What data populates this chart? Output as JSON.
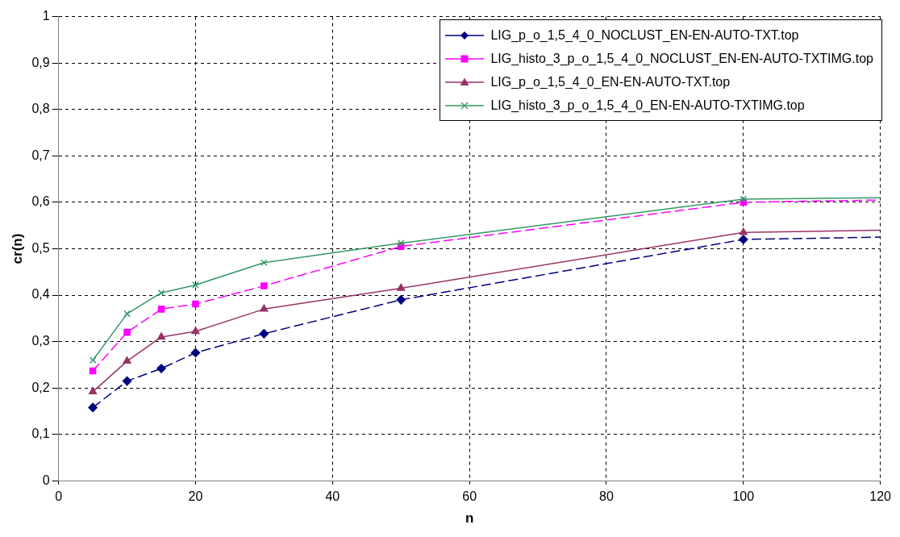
{
  "chart_data": {
    "type": "line",
    "xlabel": "n",
    "ylabel": "cr(n)",
    "xlim": [
      0,
      120
    ],
    "xticks": [
      0,
      20,
      40,
      60,
      80,
      100,
      120
    ],
    "ylim": [
      0,
      1
    ],
    "yticks": [
      0,
      {
        "value": 0.1,
        "label": "0,1"
      },
      {
        "value": 0.2,
        "label": "0,2"
      },
      {
        "value": 0.3,
        "label": "0,3"
      },
      {
        "value": 0.4,
        "label": "0,4"
      },
      {
        "value": 0.5,
        "label": "0,5"
      },
      {
        "value": 0.6,
        "label": "0,6"
      },
      {
        "value": 0.7,
        "label": "0,7"
      },
      {
        "value": 0.8,
        "label": "0,8"
      },
      {
        "value": 0.9,
        "label": "0,9"
      },
      1
    ],
    "grid": true,
    "legend": "top right",
    "series": [
      {
        "name": "LIG_p_o_1,5_4_0_NOCLUST_EN-EN-AUTO-TXT.top",
        "color": "#000080",
        "marker": "diamond",
        "line_style": "dashed",
        "x": [
          5,
          10,
          15,
          20,
          30,
          50,
          100,
          120
        ],
        "values": [
          0.158,
          0.215,
          0.242,
          0.276,
          0.317,
          0.39,
          0.52,
          0.525
        ]
      },
      {
        "name": "LIG_histo_3_p_o_1,5_4_0_NOCLUST_EN-EN-AUTO-TXTIMG.top",
        "color": "#ff00ff",
        "marker": "square",
        "line_style": "dashed",
        "x": [
          5,
          10,
          15,
          20,
          30,
          50,
          100,
          120
        ],
        "values": [
          0.237,
          0.32,
          0.37,
          0.381,
          0.42,
          0.505,
          0.6,
          0.605
        ]
      },
      {
        "name": "LIG_p_o_1,5_4_0_EN-EN-AUTO-TXT.top",
        "color": "#993366",
        "marker": "triangle",
        "x": [
          5,
          10,
          15,
          20,
          30,
          50,
          100,
          120
        ],
        "values": [
          0.192,
          0.258,
          0.31,
          0.322,
          0.37,
          0.415,
          0.535,
          0.54
        ]
      },
      {
        "name": "LIG_histo_3_p_o_1,5_4_0_EN-EN-AUTO-TXTIMG.top",
        "color": "#339966",
        "marker": "cross",
        "x": [
          5,
          10,
          15,
          20,
          30,
          50,
          100,
          120
        ],
        "values": [
          0.26,
          0.36,
          0.405,
          0.422,
          0.47,
          0.512,
          0.607,
          0.61
        ]
      }
    ]
  }
}
